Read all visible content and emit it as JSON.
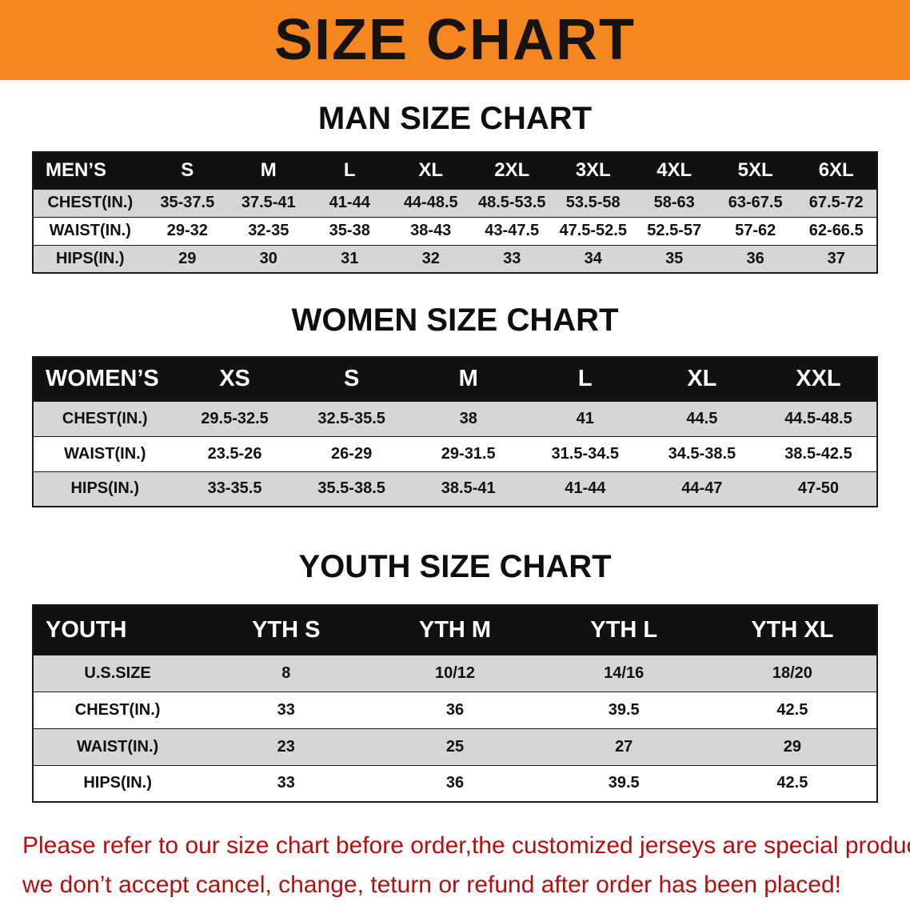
{
  "banner": {
    "title": "SIZE CHART"
  },
  "colors": {
    "banner_bg": "#f6861f",
    "table_header_bg": "#111111",
    "row_shade": "#d6d6d6",
    "disclaimer_text": "#b40f0f"
  },
  "sections": [
    {
      "id": "mens",
      "title": "MAN SIZE CHART",
      "table": {
        "header": [
          "MEN’S",
          "S",
          "M",
          "L",
          "XL",
          "2XL",
          "3XL",
          "4XL",
          "5XL",
          "6XL"
        ],
        "rows": [
          {
            "label": "CHEST(IN.)",
            "values": [
              "35-37.5",
              "37.5-41",
              "41-44",
              "44-48.5",
              "48.5-53.5",
              "53.5-58",
              "58-63",
              "63-67.5",
              "67.5-72"
            ]
          },
          {
            "label": "WAIST(IN.)",
            "values": [
              "29-32",
              "32-35",
              "35-38",
              "38-43",
              "43-47.5",
              "47.5-52.5",
              "52.5-57",
              "57-62",
              "62-66.5"
            ]
          },
          {
            "label": "HIPS(IN.)",
            "values": [
              "29",
              "30",
              "31",
              "32",
              "33",
              "34",
              "35",
              "36",
              "37"
            ]
          }
        ]
      }
    },
    {
      "id": "womens",
      "title": "WOMEN SIZE CHART",
      "table": {
        "header": [
          "WOMEN’S",
          "XS",
          "S",
          "M",
          "L",
          "XL",
          "XXL"
        ],
        "rows": [
          {
            "label": "CHEST(IN.)",
            "values": [
              "29.5-32.5",
              "32.5-35.5",
              "38",
              "41",
              "44.5",
              "44.5-48.5"
            ]
          },
          {
            "label": "WAIST(IN.)",
            "values": [
              "23.5-26",
              "26-29",
              "29-31.5",
              "31.5-34.5",
              "34.5-38.5",
              "38.5-42.5"
            ]
          },
          {
            "label": "HIPS(IN.)",
            "values": [
              "33-35.5",
              "35.5-38.5",
              "38.5-41",
              "41-44",
              "44-47",
              "47-50"
            ]
          }
        ]
      }
    },
    {
      "id": "youth",
      "title": "YOUTH SIZE CHART",
      "table": {
        "header": [
          "YOUTH",
          "YTH S",
          "YTH M",
          "YTH L",
          "YTH XL"
        ],
        "rows": [
          {
            "label": "U.S.SIZE",
            "values": [
              "8",
              "10/12",
              "14/16",
              "18/20"
            ]
          },
          {
            "label": "CHEST(IN.)",
            "values": [
              "33",
              "36",
              "39.5",
              "42.5"
            ]
          },
          {
            "label": "WAIST(IN.)",
            "values": [
              "23",
              "25",
              "27",
              "29"
            ]
          },
          {
            "label": "HIPS(IN.)",
            "values": [
              "33",
              "36",
              "39.5",
              "42.5"
            ]
          }
        ]
      }
    }
  ],
  "footer": {
    "lines": [
      "Please refer to our size chart before order,the customized jerseys are special products,",
      "we don’t accept cancel, change, teturn or refund after order has been placed!"
    ]
  }
}
